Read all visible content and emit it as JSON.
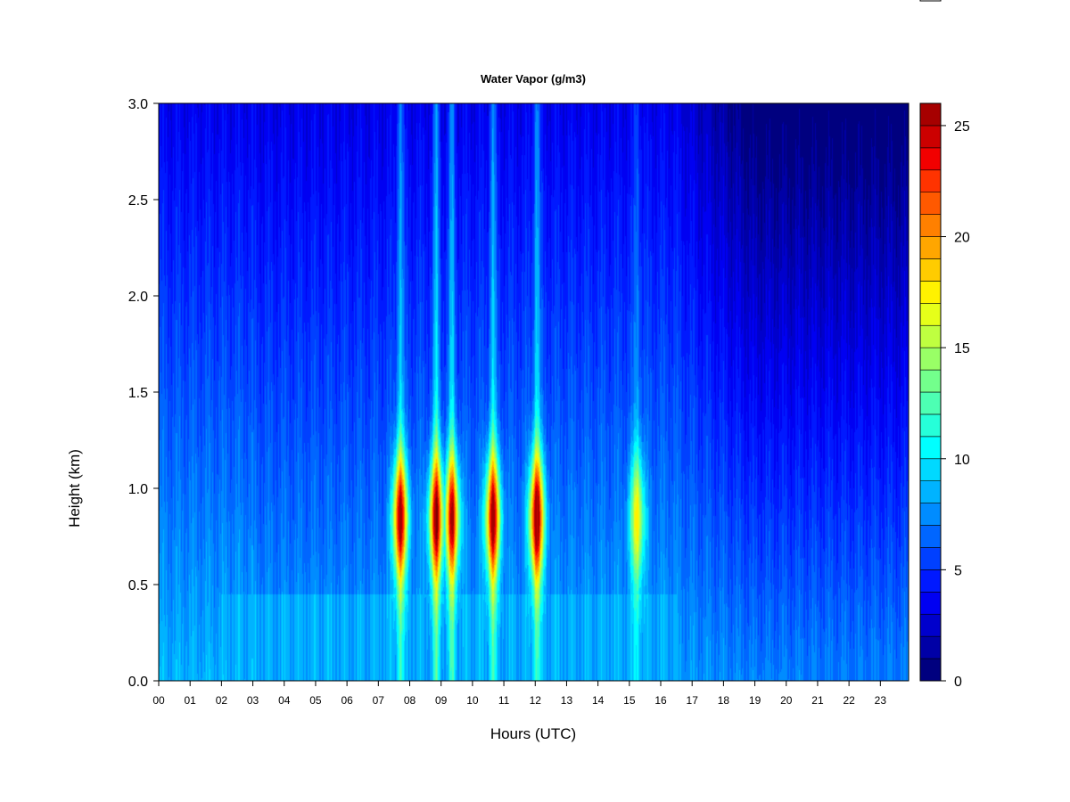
{
  "chart_data": {
    "type": "heatmap",
    "title": "Water Vapor (g/m3)",
    "xlabel": "Hours (UTC)",
    "ylabel": "Height (km)",
    "xlim": [
      0,
      23.9
    ],
    "ylim": [
      0,
      3.0
    ],
    "x_ticks": [
      "00",
      "01",
      "02",
      "03",
      "04",
      "05",
      "06",
      "07",
      "08",
      "09",
      "10",
      "11",
      "12",
      "13",
      "14",
      "15",
      "16",
      "17",
      "18",
      "19",
      "20",
      "21",
      "22",
      "23"
    ],
    "y_ticks": [
      "0.0",
      "0.5",
      "1.0",
      "1.5",
      "2.0",
      "2.5",
      "3.0"
    ],
    "colorbar": {
      "range": [
        0,
        26
      ],
      "ticks": [
        "0",
        "5",
        "10",
        "15",
        "20",
        "25"
      ],
      "levels": 26,
      "colors": [
        "#00007F",
        "#0000A6",
        "#0000CC",
        "#0000F2",
        "#0019FF",
        "#0040FF",
        "#0066FF",
        "#008CFF",
        "#00B3FF",
        "#00D9FF",
        "#00FFFF",
        "#26FFD9",
        "#4DFFB3",
        "#73FF8C",
        "#99FF66",
        "#BFFF40",
        "#E6FF19",
        "#FFF200",
        "#FFCC00",
        "#FFA600",
        "#FF8000",
        "#FF5900",
        "#FF3300",
        "#F20000",
        "#CC0000",
        "#A60000",
        "#800000"
      ]
    },
    "moisture_plumes": [
      {
        "hour": 7.7,
        "peak_height_km": 0.85,
        "peak_value": 24
      },
      {
        "hour": 8.85,
        "peak_height_km": 0.85,
        "peak_value": 24
      },
      {
        "hour": 9.35,
        "peak_height_km": 0.85,
        "peak_value": 23
      },
      {
        "hour": 10.65,
        "peak_height_km": 0.85,
        "peak_value": 24
      },
      {
        "hour": 12.05,
        "peak_height_km": 0.85,
        "peak_value": 25
      },
      {
        "hour": 15.25,
        "peak_height_km": 0.85,
        "peak_value": 17
      }
    ]
  }
}
